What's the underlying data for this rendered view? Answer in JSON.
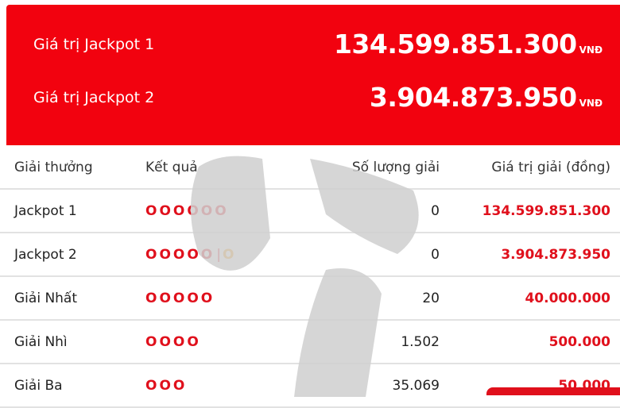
{
  "banner": {
    "jackpot1": {
      "label": "Giá trị Jackpot 1",
      "value": "134.599.851.300",
      "unit": "VNĐ"
    },
    "jackpot2": {
      "label": "Giá trị Jackpot 2",
      "value": "3.904.873.950",
      "unit": "VNĐ"
    }
  },
  "table": {
    "headers": [
      "Giải thưởng",
      "Kết quả",
      "Số lượng giải",
      "Giá trị giải (đồng)"
    ],
    "rows": [
      {
        "name": "Jackpot 1",
        "result": "OOOOOO",
        "special": "",
        "count": "0",
        "value": "134.599.851.300"
      },
      {
        "name": "Jackpot 2",
        "result": "OOOOO",
        "special": "O",
        "count": "0",
        "value": "3.904.873.950"
      },
      {
        "name": "Giải Nhất",
        "result": "OOOOO",
        "special": "",
        "count": "20",
        "value": "40.000.000"
      },
      {
        "name": "Giải Nhì",
        "result": "OOOO",
        "special": "",
        "count": "1.502",
        "value": "500.000"
      },
      {
        "name": "Giải Ba",
        "result": "OOO",
        "special": "",
        "count": "35.069",
        "value": "50.000"
      }
    ]
  },
  "colors": {
    "brand": "#f2020f",
    "special": "#f5a21b"
  }
}
